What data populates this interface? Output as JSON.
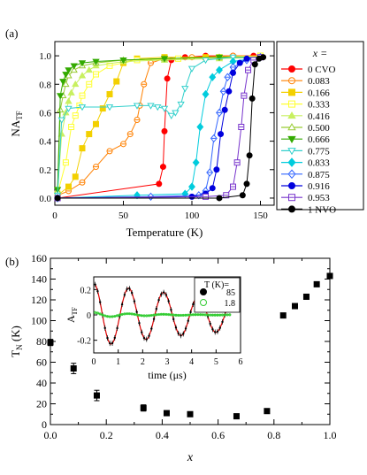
{
  "chart_data": [
    {
      "panel": "(a)",
      "type": "line",
      "xlabel": "Temperature (K)",
      "ylabel": "NA",
      "ylabel_sub": "TF",
      "xlim": [
        0,
        160
      ],
      "ylim": [
        -0.05,
        1.1
      ],
      "x_ticks": [
        "0",
        "50",
        "100",
        "150"
      ],
      "y_ticks": [
        "0.0",
        "0.2",
        "0.4",
        "0.6",
        "0.8",
        "1.0"
      ],
      "legend_title": "x =",
      "legend_position": "right",
      "series": [
        {
          "name": "0 CVO",
          "color": "#ff0000",
          "marker": "circle",
          "filled": true,
          "x": [
            2,
            76,
            79,
            80,
            82,
            85,
            95,
            110,
            130,
            145,
            150
          ],
          "y": [
            0.0,
            0.1,
            0.22,
            0.47,
            0.84,
            0.97,
            0.99,
            1.0,
            1.0,
            1.0,
            1.0
          ]
        },
        {
          "name": "0.083",
          "color": "#ff8000",
          "marker": "circle",
          "filled": false,
          "x": [
            2,
            10,
            20,
            30,
            40,
            50,
            55,
            60,
            62,
            65,
            70,
            80,
            100,
            130,
            150
          ],
          "y": [
            0.02,
            0.05,
            0.11,
            0.22,
            0.33,
            0.38,
            0.45,
            0.55,
            0.65,
            0.8,
            0.95,
            0.98,
            0.99,
            1.0,
            1.0
          ]
        },
        {
          "name": "0.166",
          "color": "#f3d000",
          "marker": "square",
          "filled": true,
          "x": [
            2,
            10,
            15,
            20,
            25,
            30,
            35,
            40,
            45,
            50,
            60,
            80,
            110,
            150
          ],
          "y": [
            0.02,
            0.08,
            0.15,
            0.35,
            0.45,
            0.52,
            0.63,
            0.73,
            0.82,
            0.95,
            0.98,
            0.99,
            0.99,
            1.0
          ]
        },
        {
          "name": "0.333",
          "color": "#ffff30",
          "marker": "square",
          "filled": false,
          "x": [
            2,
            8,
            12,
            15,
            18,
            20,
            25,
            30,
            40,
            60,
            90,
            120,
            150
          ],
          "y": [
            0.03,
            0.25,
            0.5,
            0.58,
            0.65,
            0.72,
            0.8,
            0.87,
            0.93,
            0.97,
            0.98,
            0.99,
            1.0
          ]
        },
        {
          "name": "0.416",
          "color": "#c8f060",
          "marker": "triangle",
          "filled": true,
          "x": [
            2,
            5,
            8,
            10,
            12,
            15,
            20,
            25,
            30,
            50,
            80,
            120,
            150
          ],
          "y": [
            0.05,
            0.45,
            0.6,
            0.68,
            0.74,
            0.8,
            0.86,
            0.9,
            0.93,
            0.96,
            0.97,
            0.98,
            0.99
          ]
        },
        {
          "name": "0.500",
          "color": "#99cc33",
          "marker": "triangle",
          "filled": false,
          "x": [
            2,
            4,
            6,
            8,
            10,
            14,
            20,
            30,
            50,
            80,
            120,
            150
          ],
          "y": [
            0.05,
            0.62,
            0.72,
            0.8,
            0.86,
            0.9,
            0.93,
            0.95,
            0.97,
            0.98,
            0.99,
            0.99
          ]
        },
        {
          "name": "0.666",
          "color": "#33aa00",
          "marker": "triangle-down",
          "filled": true,
          "x": [
            2,
            4,
            6,
            8,
            10,
            14,
            20,
            30,
            50,
            80,
            120,
            150
          ],
          "y": [
            0.06,
            0.72,
            0.82,
            0.87,
            0.9,
            0.93,
            0.95,
            0.96,
            0.97,
            0.98,
            0.99,
            0.99
          ]
        },
        {
          "name": "0.775",
          "color": "#33d0cc",
          "marker": "triangle-down",
          "filled": false,
          "x": [
            2,
            5,
            10,
            20,
            40,
            60,
            70,
            75,
            80,
            85,
            88,
            92,
            95,
            100,
            110,
            130,
            150
          ],
          "y": [
            0.02,
            0.55,
            0.63,
            0.64,
            0.64,
            0.65,
            0.65,
            0.64,
            0.63,
            0.58,
            0.6,
            0.66,
            0.77,
            0.91,
            0.97,
            0.99,
            0.99
          ]
        },
        {
          "name": "0.833",
          "color": "#00ccdd",
          "marker": "diamond",
          "filled": true,
          "x": [
            2,
            60,
            95,
            100,
            103,
            106,
            110,
            115,
            120,
            130,
            150
          ],
          "y": [
            0.0,
            0.02,
            0.03,
            0.08,
            0.25,
            0.5,
            0.73,
            0.85,
            0.9,
            0.96,
            0.99
          ]
        },
        {
          "name": "0.875",
          "color": "#3366ff",
          "marker": "diamond",
          "filled": false,
          "x": [
            2,
            70,
            105,
            110,
            113,
            116,
            120,
            123,
            126,
            130,
            140,
            150
          ],
          "y": [
            0.0,
            0.01,
            0.02,
            0.05,
            0.18,
            0.42,
            0.6,
            0.75,
            0.85,
            0.92,
            0.97,
            0.99
          ]
        },
        {
          "name": "0.916",
          "color": "#0000dd",
          "marker": "circle",
          "filled": true,
          "x": [
            2,
            100,
            110,
            115,
            118,
            121,
            124,
            127,
            130,
            135,
            140,
            150
          ],
          "y": [
            0.0,
            0.01,
            0.03,
            0.07,
            0.2,
            0.45,
            0.62,
            0.75,
            0.88,
            0.95,
            0.98,
            0.99
          ]
        },
        {
          "name": "0.953",
          "color": "#7733cc",
          "marker": "square",
          "filled": false,
          "x": [
            2,
            110,
            125,
            130,
            133,
            136,
            138,
            141,
            145,
            150
          ],
          "y": [
            0.0,
            0.01,
            0.02,
            0.08,
            0.25,
            0.5,
            0.72,
            0.9,
            0.97,
            0.99
          ]
        },
        {
          "name": "1 NVO",
          "color": "#000000",
          "marker": "circle",
          "filled": true,
          "x": [
            2,
            120,
            137,
            140,
            142,
            144,
            146,
            149,
            152
          ],
          "y": [
            0.0,
            0.0,
            0.02,
            0.1,
            0.3,
            0.7,
            0.94,
            0.98,
            0.99
          ]
        }
      ]
    },
    {
      "panel": "(b)",
      "type": "scatter",
      "xlabel": "x",
      "ylabel": "T",
      "ylabel_sub": "N",
      "ylabel_suffix": " (K)",
      "xlim": [
        0,
        1
      ],
      "ylim": [
        0,
        160
      ],
      "x_ticks": [
        "0.0",
        "0.2",
        "0.4",
        "0.6",
        "0.8",
        "1.0"
      ],
      "y_ticks": [
        "0",
        "20",
        "40",
        "60",
        "80",
        "100",
        "120",
        "140",
        "160"
      ],
      "marker_color": "#000000",
      "points": [
        {
          "x": 0.0,
          "y": 79,
          "err": 3
        },
        {
          "x": 0.083,
          "y": 54,
          "err": 5
        },
        {
          "x": 0.166,
          "y": 28,
          "err": 5
        },
        {
          "x": 0.333,
          "y": 16,
          "err": 3
        },
        {
          "x": 0.416,
          "y": 11,
          "err": 1
        },
        {
          "x": 0.5,
          "y": 10,
          "err": 1
        },
        {
          "x": 0.666,
          "y": 8,
          "err": 1
        },
        {
          "x": 0.775,
          "y": 13,
          "err": 1
        },
        {
          "x": 0.833,
          "y": 105,
          "err": 1
        },
        {
          "x": 0.875,
          "y": 114,
          "err": 1
        },
        {
          "x": 0.916,
          "y": 123,
          "err": 1
        },
        {
          "x": 0.953,
          "y": 135,
          "err": 1
        },
        {
          "x": 1.0,
          "y": 143,
          "err": 1
        }
      ]
    },
    {
      "panel": "inset",
      "type": "line",
      "xlabel": "time (μs)",
      "ylabel": "A",
      "ylabel_sub": "TF",
      "xlim": [
        0,
        6
      ],
      "ylim": [
        -0.3,
        0.3
      ],
      "x_ticks": [
        "0",
        "1",
        "2",
        "3",
        "4",
        "5",
        "6"
      ],
      "y_ticks": [
        "-0.2",
        "0",
        "0.2"
      ],
      "legend_title": "T (K)=",
      "legend_position": "top-right",
      "series": [
        {
          "name": "85",
          "color": "#000000",
          "marker": "circle",
          "fit_color": "#dd0000",
          "amplitude": 0.25,
          "frequency": 0.7,
          "decay": 0.12
        },
        {
          "name": "1.8",
          "color": "#33cc33",
          "marker": "circle-open",
          "amplitude": 0.02,
          "frequency": 0.7,
          "decay": 0.5
        }
      ]
    }
  ]
}
